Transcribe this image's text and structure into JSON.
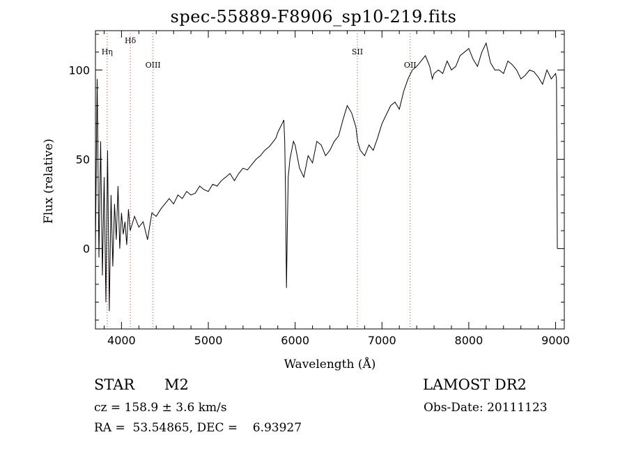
{
  "chart_data": {
    "type": "line",
    "title": "spec-55889-F8906_sp10-219.fits",
    "xlabel": "Wavelength (Å)",
    "ylabel": "Flux (relative)",
    "xlim": [
      3700,
      9100
    ],
    "ylim": [
      -45,
      122
    ],
    "x_ticks": [
      4000,
      5000,
      6000,
      7000,
      8000,
      9000
    ],
    "y_ticks": [
      0,
      50,
      100
    ],
    "line_color": "#000000",
    "marker_color": "#c0392b",
    "line_markers": [
      {
        "label": "Hη",
        "wavelength": 3835
      },
      {
        "label": "Hδ",
        "wavelength": 4102
      },
      {
        "label": "OIII",
        "wavelength": 4363
      },
      {
        "label": "SII",
        "wavelength": 6717
      },
      {
        "label": "OII",
        "wavelength": 7325
      }
    ],
    "series": [
      {
        "x": [
          3700,
          3720,
          3740,
          3760,
          3780,
          3800,
          3820,
          3840,
          3860,
          3880,
          3900,
          3920,
          3940,
          3960,
          3980,
          4000,
          4020,
          4040,
          4060,
          4080,
          4100,
          4150,
          4200,
          4250,
          4300,
          4350,
          4400,
          4450,
          4500,
          4550,
          4600,
          4650,
          4700,
          4750,
          4800,
          4850,
          4900,
          4950,
          5000,
          5050,
          5100,
          5150,
          5200,
          5250,
          5300,
          5350,
          5400,
          5450,
          5500,
          5550,
          5600,
          5650,
          5700,
          5750,
          5780,
          5800,
          5850,
          5870,
          5880,
          5890,
          5900,
          5910,
          5920,
          5940,
          5960,
          5980,
          6000,
          6050,
          6100,
          6150,
          6200,
          6250,
          6300,
          6350,
          6400,
          6450,
          6500,
          6550,
          6600,
          6650,
          6700,
          6720,
          6750,
          6800,
          6850,
          6900,
          6950,
          7000,
          7050,
          7100,
          7150,
          7200,
          7250,
          7300,
          7350,
          7400,
          7450,
          7500,
          7550,
          7580,
          7600,
          7650,
          7700,
          7750,
          7800,
          7850,
          7900,
          7950,
          8000,
          8050,
          8100,
          8150,
          8200,
          8250,
          8300,
          8350,
          8400,
          8450,
          8500,
          8550,
          8600,
          8650,
          8700,
          8750,
          8800,
          8850,
          8900,
          8950,
          9000,
          9010,
          9020
        ],
        "y": [
          0,
          95,
          -5,
          60,
          -15,
          40,
          -30,
          55,
          -35,
          30,
          -10,
          25,
          5,
          35,
          0,
          20,
          8,
          15,
          2,
          22,
          10,
          18,
          12,
          15,
          5,
          20,
          18,
          22,
          25,
          28,
          25,
          30,
          28,
          32,
          30,
          31,
          35,
          33,
          32,
          36,
          35,
          38,
          40,
          42,
          38,
          42,
          45,
          44,
          47,
          50,
          52,
          55,
          57,
          60,
          62,
          65,
          70,
          72,
          60,
          30,
          -22,
          10,
          40,
          50,
          55,
          60,
          58,
          45,
          40,
          52,
          48,
          60,
          58,
          52,
          55,
          60,
          63,
          72,
          80,
          76,
          68,
          60,
          55,
          52,
          58,
          55,
          62,
          70,
          75,
          80,
          82,
          78,
          88,
          95,
          100,
          102,
          105,
          108,
          102,
          95,
          98,
          100,
          98,
          105,
          100,
          102,
          108,
          110,
          112,
          106,
          102,
          110,
          115,
          104,
          100,
          100,
          98,
          105,
          103,
          100,
          95,
          97,
          100,
          99,
          96,
          92,
          100,
          95,
          98,
          95,
          0
        ]
      }
    ]
  },
  "info": {
    "object_class": "STAR",
    "subclass": "M2",
    "survey": "LAMOST DR2",
    "cz": "cz = 158.9 ± 3.6 km/s",
    "obs_date": "Obs-Date: 20111123",
    "coords": "RA =  53.54865, DEC =    6.93927"
  }
}
